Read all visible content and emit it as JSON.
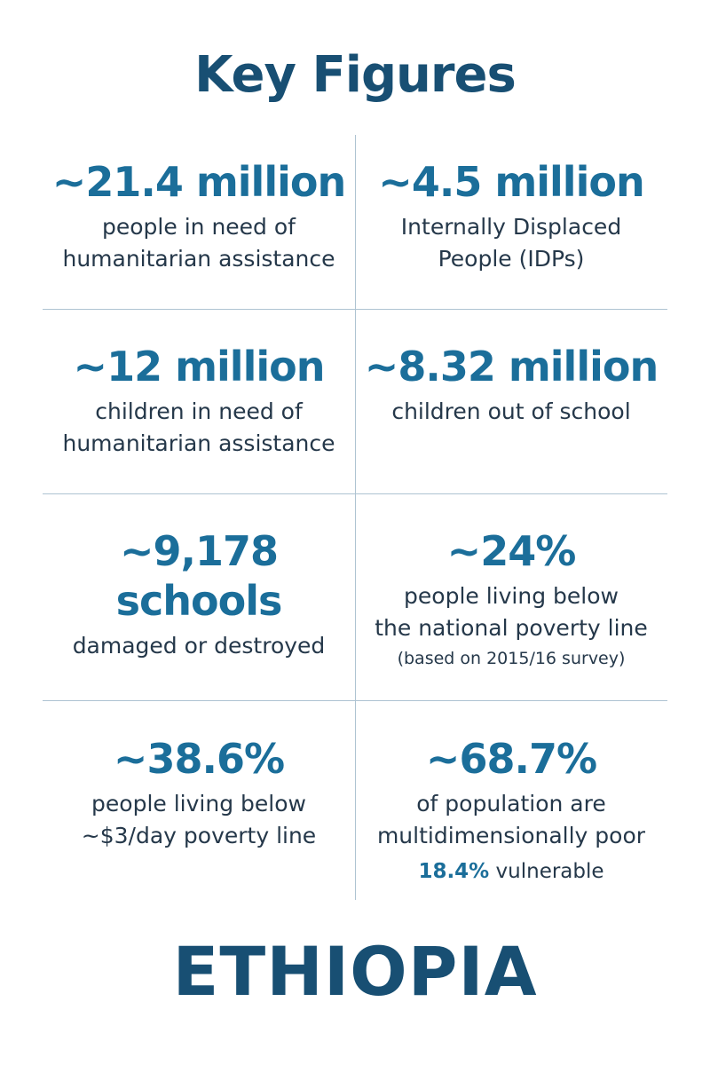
{
  "title": "Key Figures",
  "figures": [
    {
      "value": "~21.4 million",
      "lines": [
        "people in need of",
        "humanitarian assistance"
      ]
    },
    {
      "value": "~4.5 million",
      "lines": [
        "Internally Displaced",
        "People (IDPs)"
      ]
    },
    {
      "value": "~12 million",
      "lines": [
        "children in need of",
        "humanitarian assistance"
      ]
    },
    {
      "value": "~8.32 million",
      "lines": [
        "children out of school"
      ]
    },
    {
      "value": "~9,178",
      "value2": "schools",
      "lines": [
        "damaged or destroyed"
      ]
    },
    {
      "value": "~24%",
      "lines": [
        "people living below",
        "the national poverty line"
      ],
      "note": "(based on 2015/16 survey)"
    },
    {
      "value": "~38.6%",
      "lines": [
        "people living below",
        "~$3/day poverty line"
      ]
    },
    {
      "value": "~68.7%",
      "lines": [
        "of population are",
        "multidimensionally poor"
      ],
      "extra_value": "18.4%",
      "extra_label": "vulnerable"
    }
  ],
  "country": "ETHIOPIA",
  "colors": {
    "accent": "#1b6e9a",
    "heading": "#184f73",
    "divider": "#aec3d2"
  }
}
